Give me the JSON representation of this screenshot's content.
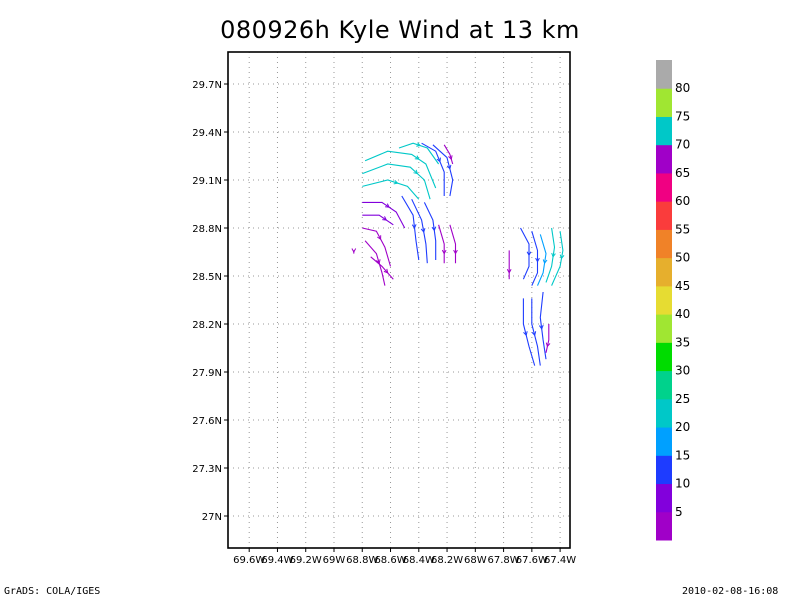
{
  "chart_data": {
    "type": "streamline",
    "title": "080926h Kyle Wind at 13 km",
    "xlabel": "",
    "ylabel": "",
    "xlim": [
      -69.75,
      -67.33
    ],
    "ylim": [
      26.8,
      29.9
    ],
    "grid": true,
    "x_ticks": [
      {
        "v": -69.6,
        "label": "69.6W"
      },
      {
        "v": -69.4,
        "label": "69.4W"
      },
      {
        "v": -69.2,
        "label": "69.2W"
      },
      {
        "v": -69.0,
        "label": "69W"
      },
      {
        "v": -68.8,
        "label": "68.8W"
      },
      {
        "v": -68.6,
        "label": "68.6W"
      },
      {
        "v": -68.4,
        "label": "68.4W"
      },
      {
        "v": -68.2,
        "label": "68.2W"
      },
      {
        "v": -68.0,
        "label": "68W"
      },
      {
        "v": -67.8,
        "label": "67.8W"
      },
      {
        "v": -67.6,
        "label": "67.6W"
      },
      {
        "v": -67.4,
        "label": "67.4W"
      }
    ],
    "y_ticks": [
      {
        "v": 27.0,
        "label": "27N"
      },
      {
        "v": 27.3,
        "label": "27.3N"
      },
      {
        "v": 27.6,
        "label": "27.6N"
      },
      {
        "v": 27.9,
        "label": "27.9N"
      },
      {
        "v": 28.2,
        "label": "28.2N"
      },
      {
        "v": 28.5,
        "label": "28.5N"
      },
      {
        "v": 28.8,
        "label": "28.8N"
      },
      {
        "v": 29.1,
        "label": "29.1N"
      },
      {
        "v": 29.4,
        "label": "29.4N"
      },
      {
        "v": 29.7,
        "label": "29.7N"
      }
    ],
    "colorbar": {
      "labels": [
        "5",
        "10",
        "15",
        "20",
        "25",
        "30",
        "35",
        "40",
        "45",
        "50",
        "55",
        "60",
        "65",
        "70",
        "75",
        "80"
      ],
      "colors": [
        "#a000c8",
        "#8200dc",
        "#1e3cff",
        "#00a0ff",
        "#00c8c8",
        "#00d28c",
        "#00dc00",
        "#a0e632",
        "#e6dc32",
        "#e6af2d",
        "#f08228",
        "#fa3c3c",
        "#f00082",
        "#a000c8",
        "#00c8c8",
        "#a0e632",
        "#aaaaaa"
      ]
    },
    "streamlines": [
      {
        "color": "#00c8c8",
        "points": [
          [
            -68.78,
            29.22
          ],
          [
            -68.62,
            29.28
          ],
          [
            -68.45,
            29.26
          ],
          [
            -68.35,
            29.2
          ],
          [
            -68.28,
            29.05
          ]
        ]
      },
      {
        "color": "#00c8c8",
        "points": [
          [
            -68.8,
            29.14
          ],
          [
            -68.62,
            29.2
          ],
          [
            -68.46,
            29.18
          ],
          [
            -68.36,
            29.1
          ],
          [
            -68.32,
            28.98
          ]
        ]
      },
      {
        "color": "#00c8c8",
        "points": [
          [
            -68.8,
            29.06
          ],
          [
            -68.62,
            29.1
          ],
          [
            -68.48,
            29.06
          ],
          [
            -68.4,
            28.98
          ]
        ]
      },
      {
        "color": "#00c8c8",
        "points": [
          [
            -68.54,
            29.3
          ],
          [
            -68.44,
            29.33
          ],
          [
            -68.34,
            29.3
          ],
          [
            -68.26,
            29.2
          ]
        ]
      },
      {
        "color": "#1e3cff",
        "points": [
          [
            -68.38,
            29.33
          ],
          [
            -68.28,
            29.28
          ],
          [
            -68.22,
            29.15
          ],
          [
            -68.22,
            29.0
          ]
        ]
      },
      {
        "color": "#1e3cff",
        "points": [
          [
            -68.3,
            29.32
          ],
          [
            -68.2,
            29.24
          ],
          [
            -68.16,
            29.1
          ],
          [
            -68.18,
            29.0
          ]
        ]
      },
      {
        "color": "#1e3cff",
        "points": [
          [
            -68.52,
            29.0
          ],
          [
            -68.44,
            28.88
          ],
          [
            -68.42,
            28.72
          ],
          [
            -68.4,
            28.6
          ]
        ]
      },
      {
        "color": "#1e3cff",
        "points": [
          [
            -68.45,
            28.98
          ],
          [
            -68.38,
            28.85
          ],
          [
            -68.35,
            28.7
          ],
          [
            -68.34,
            28.58
          ]
        ]
      },
      {
        "color": "#1e3cff",
        "points": [
          [
            -68.36,
            28.96
          ],
          [
            -68.3,
            28.85
          ],
          [
            -68.28,
            28.72
          ],
          [
            -68.28,
            28.6
          ]
        ]
      },
      {
        "color": "#8200dc",
        "points": [
          [
            -68.8,
            28.96
          ],
          [
            -68.66,
            28.96
          ],
          [
            -68.56,
            28.9
          ],
          [
            -68.5,
            28.8
          ]
        ]
      },
      {
        "color": "#8200dc",
        "points": [
          [
            -68.8,
            28.88
          ],
          [
            -68.68,
            28.88
          ],
          [
            -68.58,
            28.82
          ]
        ]
      },
      {
        "color": "#a000c8",
        "points": [
          [
            -68.8,
            28.8
          ],
          [
            -68.7,
            28.78
          ],
          [
            -68.64,
            28.68
          ],
          [
            -68.6,
            28.56
          ]
        ]
      },
      {
        "color": "#a000c8",
        "points": [
          [
            -68.78,
            28.72
          ],
          [
            -68.7,
            28.64
          ],
          [
            -68.66,
            28.52
          ],
          [
            -68.64,
            28.44
          ]
        ]
      },
      {
        "color": "#a000c8",
        "points": [
          [
            -68.74,
            28.62
          ],
          [
            -68.66,
            28.56
          ],
          [
            -68.58,
            28.48
          ]
        ]
      },
      {
        "color": "#a000c8",
        "points": [
          [
            -68.26,
            28.82
          ],
          [
            -68.22,
            28.7
          ],
          [
            -68.22,
            28.58
          ]
        ]
      },
      {
        "color": "#a000c8",
        "points": [
          [
            -68.18,
            28.82
          ],
          [
            -68.14,
            28.7
          ],
          [
            -68.14,
            28.58
          ]
        ]
      },
      {
        "color": "#a000c8",
        "points": [
          [
            -68.22,
            29.32
          ],
          [
            -68.18,
            29.26
          ],
          [
            -68.16,
            29.2
          ]
        ]
      },
      {
        "color": "#a000c8",
        "points": [
          [
            -68.86,
            28.66
          ],
          [
            -68.86,
            28.64
          ]
        ]
      },
      {
        "color": "#1e3cff",
        "points": [
          [
            -67.68,
            28.8
          ],
          [
            -67.62,
            28.7
          ],
          [
            -67.62,
            28.56
          ],
          [
            -67.66,
            28.48
          ]
        ]
      },
      {
        "color": "#1e3cff",
        "points": [
          [
            -67.6,
            28.78
          ],
          [
            -67.56,
            28.66
          ],
          [
            -67.56,
            28.52
          ],
          [
            -67.6,
            28.44
          ]
        ]
      },
      {
        "color": "#00a0ff",
        "points": [
          [
            -67.54,
            28.76
          ],
          [
            -67.5,
            28.64
          ],
          [
            -67.52,
            28.52
          ],
          [
            -67.56,
            28.44
          ]
        ]
      },
      {
        "color": "#00c8c8",
        "points": [
          [
            -67.46,
            28.8
          ],
          [
            -67.44,
            28.68
          ],
          [
            -67.46,
            28.56
          ],
          [
            -67.5,
            28.46
          ]
        ]
      },
      {
        "color": "#00c8c8",
        "points": [
          [
            -67.4,
            28.78
          ],
          [
            -67.38,
            28.66
          ],
          [
            -67.4,
            28.56
          ],
          [
            -67.46,
            28.44
          ]
        ]
      },
      {
        "color": "#a000c8",
        "points": [
          [
            -67.76,
            28.66
          ],
          [
            -67.76,
            28.56
          ],
          [
            -67.76,
            28.48
          ]
        ]
      },
      {
        "color": "#1e3cff",
        "points": [
          [
            -67.66,
            28.36
          ],
          [
            -67.66,
            28.2
          ],
          [
            -67.62,
            28.06
          ],
          [
            -67.58,
            27.94
          ]
        ]
      },
      {
        "color": "#1e3cff",
        "points": [
          [
            -67.6,
            28.36
          ],
          [
            -67.6,
            28.2
          ],
          [
            -67.56,
            28.06
          ],
          [
            -67.54,
            27.94
          ]
        ]
      },
      {
        "color": "#1e3cff",
        "points": [
          [
            -67.52,
            28.4
          ],
          [
            -67.54,
            28.24
          ],
          [
            -67.52,
            28.1
          ],
          [
            -67.5,
            27.98
          ]
        ]
      },
      {
        "color": "#a000c8",
        "points": [
          [
            -67.48,
            28.2
          ],
          [
            -67.48,
            28.1
          ],
          [
            -67.5,
            28.02
          ]
        ]
      }
    ]
  },
  "footer": {
    "left": "GrADS: COLA/IGES",
    "right": "2010-02-08-16:08"
  }
}
